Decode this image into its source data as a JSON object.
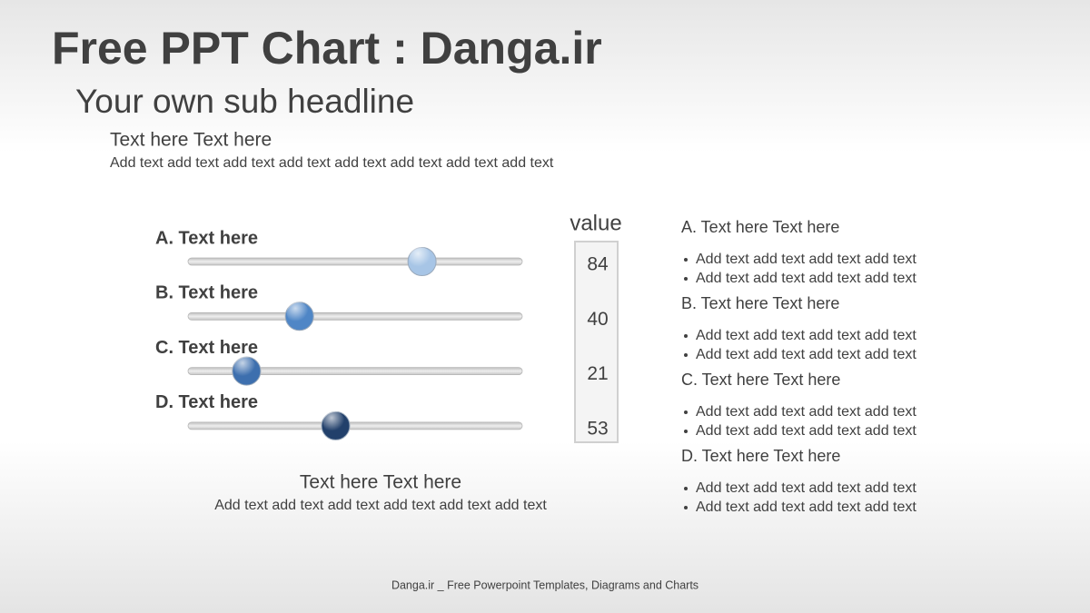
{
  "header": {
    "title": "Free PPT Chart : Danga.ir",
    "subtitle": "Your own sub headline",
    "heading": "Text here Text here",
    "text": "Add text add text add text add text add text add text add text add text"
  },
  "chart_data": {
    "type": "slider",
    "value_title": "value",
    "categories": [
      "A. Text here",
      "B. Text here",
      "C. Text here",
      "D. Text here"
    ],
    "values": [
      84,
      40,
      21,
      53
    ],
    "colors": [
      "#a7c5e6",
      "#4f86c6",
      "#3d6fae",
      "#22406b"
    ],
    "xlim": [
      0,
      120
    ]
  },
  "caption": {
    "heading": "Text here Text here",
    "text": "Add text add text add text add text add text add text"
  },
  "notes": [
    {
      "heading": "A. Text here Text here",
      "bullets": [
        "Add text add text add text add text",
        "Add text add text add text add text"
      ]
    },
    {
      "heading": "B. Text here Text here",
      "bullets": [
        "Add text add text add text add text",
        "Add text add text add text add text"
      ]
    },
    {
      "heading": "C. Text here Text here",
      "bullets": [
        "Add text add text add text add text",
        "Add text add text add text add text"
      ]
    },
    {
      "heading": "D. Text here Text here",
      "bullets": [
        "Add text add text add text add text",
        "Add text add text add text add text"
      ]
    }
  ],
  "footer": "Danga.ir _ Free Powerpoint Templates, Diagrams and Charts"
}
